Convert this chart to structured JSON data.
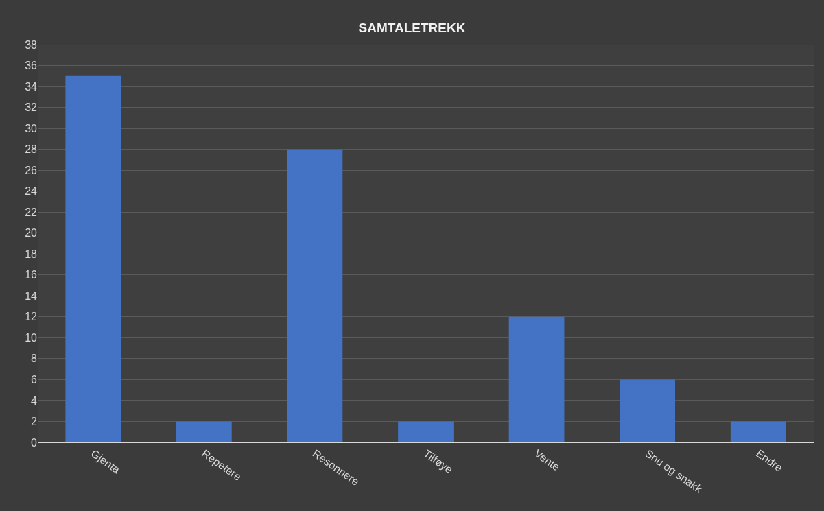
{
  "chart_data": {
    "type": "bar",
    "title": "SAMTALETREKK",
    "categories": [
      "Gjenta",
      "Repetere",
      "Resonnere",
      "Tilføye",
      "Vente",
      "Snu og snakk",
      "Endre"
    ],
    "values": [
      35,
      2,
      28,
      2,
      12,
      6,
      2
    ],
    "color": "#4472c4",
    "ylim": [
      0,
      38
    ],
    "yticks": [
      0,
      2,
      4,
      6,
      8,
      10,
      12,
      14,
      16,
      18,
      20,
      22,
      24,
      26,
      28,
      30,
      32,
      34,
      36,
      38
    ],
    "grid": "y"
  }
}
